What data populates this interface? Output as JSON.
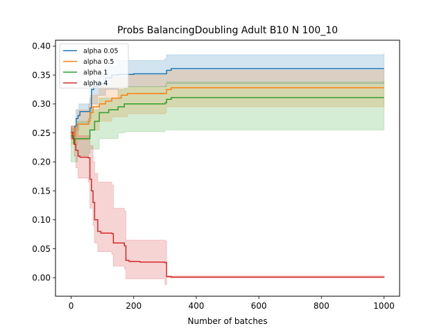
{
  "chart_data": {
    "type": "line",
    "title": "Probs BalancingDoubling Adult B10 N 100_10",
    "xlabel": "Number of batches",
    "ylabel": "",
    "xlim": [
      -50,
      1050
    ],
    "ylim": [
      -0.032,
      0.41
    ],
    "xticks": [
      0,
      200,
      400,
      600,
      800,
      1000
    ],
    "yticks": [
      0.0,
      0.05,
      0.1,
      0.15,
      0.2,
      0.25,
      0.3,
      0.35,
      0.4
    ],
    "xtick_labels": [
      "0",
      "200",
      "400",
      "600",
      "800",
      "1000"
    ],
    "ytick_labels": [
      "0.00",
      "0.05",
      "0.10",
      "0.15",
      "0.20",
      "0.25",
      "0.30",
      "0.35",
      "0.40"
    ],
    "legend_position": "top-left",
    "grid": false,
    "series": [
      {
        "name": "alpha 0.05",
        "color": "#1f77b4",
        "points": [
          [
            0,
            0.251
          ],
          [
            8,
            0.25
          ],
          [
            12,
            0.262
          ],
          [
            16,
            0.275
          ],
          [
            22,
            0.28
          ],
          [
            28,
            0.287
          ],
          [
            60,
            0.293
          ],
          [
            65,
            0.325
          ],
          [
            72,
            0.33
          ],
          [
            85,
            0.335
          ],
          [
            110,
            0.345
          ],
          [
            130,
            0.35
          ],
          [
            150,
            0.351
          ],
          [
            200,
            0.352
          ],
          [
            300,
            0.352
          ],
          [
            305,
            0.358
          ],
          [
            320,
            0.361
          ],
          [
            1000,
            0.361
          ]
        ],
        "band_upper": [
          [
            0,
            0.262
          ],
          [
            10,
            0.262
          ],
          [
            15,
            0.29
          ],
          [
            25,
            0.3
          ],
          [
            60,
            0.31
          ],
          [
            65,
            0.34
          ],
          [
            85,
            0.355
          ],
          [
            110,
            0.365
          ],
          [
            150,
            0.375
          ],
          [
            300,
            0.378
          ],
          [
            305,
            0.385
          ],
          [
            1000,
            0.388
          ]
        ],
        "band_lower": [
          [
            0,
            0.24
          ],
          [
            10,
            0.24
          ],
          [
            15,
            0.255
          ],
          [
            25,
            0.265
          ],
          [
            60,
            0.275
          ],
          [
            65,
            0.3
          ],
          [
            85,
            0.315
          ],
          [
            110,
            0.325
          ],
          [
            150,
            0.33
          ],
          [
            300,
            0.33
          ],
          [
            305,
            0.335
          ],
          [
            1000,
            0.337
          ]
        ]
      },
      {
        "name": "alpha 0.5",
        "color": "#ff7f0e",
        "points": [
          [
            0,
            0.25
          ],
          [
            8,
            0.245
          ],
          [
            12,
            0.258
          ],
          [
            20,
            0.265
          ],
          [
            28,
            0.265
          ],
          [
            55,
            0.27
          ],
          [
            60,
            0.285
          ],
          [
            70,
            0.295
          ],
          [
            90,
            0.3
          ],
          [
            110,
            0.305
          ],
          [
            130,
            0.31
          ],
          [
            160,
            0.315
          ],
          [
            180,
            0.318
          ],
          [
            300,
            0.318
          ],
          [
            305,
            0.325
          ],
          [
            320,
            0.328
          ],
          [
            1000,
            0.328
          ]
        ],
        "band_upper": [
          [
            0,
            0.262
          ],
          [
            10,
            0.262
          ],
          [
            20,
            0.29
          ],
          [
            55,
            0.3
          ],
          [
            60,
            0.315
          ],
          [
            90,
            0.33
          ],
          [
            130,
            0.345
          ],
          [
            180,
            0.35
          ],
          [
            300,
            0.352
          ],
          [
            305,
            0.358
          ],
          [
            1000,
            0.36
          ]
        ],
        "band_lower": [
          [
            0,
            0.23
          ],
          [
            10,
            0.23
          ],
          [
            20,
            0.238
          ],
          [
            55,
            0.242
          ],
          [
            60,
            0.255
          ],
          [
            90,
            0.27
          ],
          [
            130,
            0.278
          ],
          [
            180,
            0.283
          ],
          [
            300,
            0.285
          ],
          [
            305,
            0.295
          ],
          [
            1000,
            0.298
          ]
        ]
      },
      {
        "name": "alpha 1",
        "color": "#2ca02c",
        "points": [
          [
            0,
            0.245
          ],
          [
            8,
            0.232
          ],
          [
            12,
            0.24
          ],
          [
            20,
            0.24
          ],
          [
            55,
            0.24
          ],
          [
            60,
            0.255
          ],
          [
            75,
            0.27
          ],
          [
            90,
            0.285
          ],
          [
            120,
            0.29
          ],
          [
            150,
            0.295
          ],
          [
            170,
            0.3
          ],
          [
            300,
            0.302
          ],
          [
            305,
            0.308
          ],
          [
            320,
            0.311
          ],
          [
            1000,
            0.311
          ]
        ],
        "band_upper": [
          [
            0,
            0.258
          ],
          [
            10,
            0.258
          ],
          [
            20,
            0.27
          ],
          [
            55,
            0.275
          ],
          [
            60,
            0.29
          ],
          [
            90,
            0.31
          ],
          [
            150,
            0.325
          ],
          [
            170,
            0.33
          ],
          [
            300,
            0.332
          ],
          [
            305,
            0.338
          ],
          [
            1000,
            0.34
          ]
        ],
        "band_lower": [
          [
            0,
            0.2
          ],
          [
            10,
            0.2
          ],
          [
            20,
            0.21
          ],
          [
            55,
            0.215
          ],
          [
            60,
            0.222
          ],
          [
            90,
            0.24
          ],
          [
            150,
            0.25
          ],
          [
            170,
            0.252
          ],
          [
            300,
            0.255
          ],
          [
            305,
            0.255
          ],
          [
            1000,
            0.256
          ]
        ]
      },
      {
        "name": "alpha 4",
        "color": "#d62728",
        "points": [
          [
            0,
            0.251
          ],
          [
            5,
            0.24
          ],
          [
            10,
            0.23
          ],
          [
            15,
            0.22
          ],
          [
            22,
            0.21
          ],
          [
            28,
            0.208
          ],
          [
            55,
            0.207
          ],
          [
            60,
            0.17
          ],
          [
            65,
            0.15
          ],
          [
            70,
            0.13
          ],
          [
            75,
            0.1
          ],
          [
            85,
            0.08
          ],
          [
            95,
            0.077
          ],
          [
            130,
            0.076
          ],
          [
            135,
            0.06
          ],
          [
            170,
            0.055
          ],
          [
            175,
            0.03
          ],
          [
            185,
            0.028
          ],
          [
            220,
            0.027
          ],
          [
            300,
            0.026
          ],
          [
            305,
            0.002
          ],
          [
            320,
            0.001
          ],
          [
            1000,
            0.0
          ]
        ],
        "band_upper": [
          [
            0,
            0.262
          ],
          [
            10,
            0.262
          ],
          [
            15,
            0.255
          ],
          [
            22,
            0.245
          ],
          [
            55,
            0.245
          ],
          [
            60,
            0.228
          ],
          [
            70,
            0.2
          ],
          [
            75,
            0.18
          ],
          [
            85,
            0.165
          ],
          [
            130,
            0.16
          ],
          [
            135,
            0.12
          ],
          [
            170,
            0.115
          ],
          [
            175,
            0.065
          ],
          [
            300,
            0.063
          ],
          [
            305,
            0.003
          ],
          [
            1000,
            0.002
          ]
        ],
        "band_lower": [
          [
            0,
            0.24
          ],
          [
            10,
            0.21
          ],
          [
            15,
            0.19
          ],
          [
            22,
            0.172
          ],
          [
            55,
            0.165
          ],
          [
            60,
            0.12
          ],
          [
            70,
            0.09
          ],
          [
            75,
            0.06
          ],
          [
            85,
            0.045
          ],
          [
            130,
            0.04
          ],
          [
            135,
            0.02
          ],
          [
            170,
            0.015
          ],
          [
            175,
            -0.002
          ],
          [
            300,
            -0.012
          ],
          [
            305,
            0.0
          ],
          [
            1000,
            0.0
          ]
        ]
      }
    ]
  }
}
